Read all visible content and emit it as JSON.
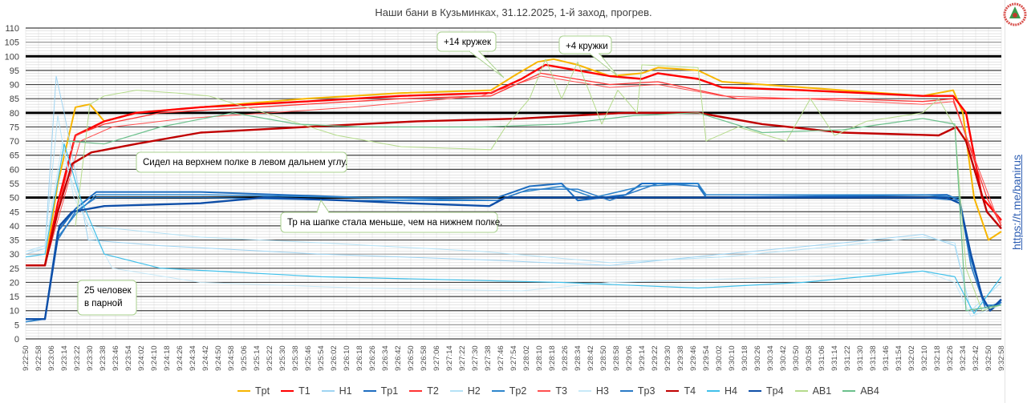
{
  "chart_data": {
    "type": "line",
    "title": "Наши бани в Кузьминках, 31.12.2025, 1-й заход, прогрев.",
    "xlabel": "",
    "ylabel": "",
    "ylim": [
      0,
      110
    ],
    "y_ticks": [
      "0",
      "5",
      "10",
      "15",
      "20",
      "25",
      "30",
      "35",
      "40",
      "45",
      "50",
      "55",
      "60",
      "65",
      "70",
      "75",
      "80",
      "85",
      "90",
      "95",
      "100",
      "105",
      "110"
    ],
    "x_start": "9:22:50",
    "x_end": "9:32:58",
    "x_tick_step_seconds": 8,
    "x_range_seconds": [
      0,
      608
    ],
    "bold_reference_lines": [
      50,
      80,
      100
    ],
    "grid": true,
    "legend_position": "bottom",
    "series": [
      {
        "name": "Tpt",
        "color": "#f7b500",
        "width": 2,
        "points": [
          [
            0,
            26
          ],
          [
            12,
            26
          ],
          [
            20,
            55
          ],
          [
            31,
            82
          ],
          [
            40,
            83
          ],
          [
            49,
            77
          ],
          [
            69,
            80
          ],
          [
            109,
            82
          ],
          [
            174,
            85
          ],
          [
            234,
            87
          ],
          [
            290,
            88
          ],
          [
            304,
            93
          ],
          [
            319,
            98
          ],
          [
            329,
            99
          ],
          [
            344,
            97
          ],
          [
            364,
            93
          ],
          [
            384,
            94
          ],
          [
            394,
            96
          ],
          [
            419,
            95
          ],
          [
            434,
            91
          ],
          [
            459,
            90
          ],
          [
            509,
            88
          ],
          [
            559,
            86
          ],
          [
            578,
            88
          ],
          [
            584,
            80
          ],
          [
            591,
            50
          ],
          [
            600,
            35
          ],
          [
            608,
            38
          ]
        ]
      },
      {
        "name": "T1",
        "color": "#ff0000",
        "width": 2.4,
        "points": [
          [
            0,
            26
          ],
          [
            12,
            26
          ],
          [
            20,
            48
          ],
          [
            31,
            72
          ],
          [
            49,
            77
          ],
          [
            69,
            80
          ],
          [
            109,
            82
          ],
          [
            174,
            84
          ],
          [
            234,
            86
          ],
          [
            290,
            87
          ],
          [
            309,
            92
          ],
          [
            324,
            97
          ],
          [
            334,
            96
          ],
          [
            364,
            93
          ],
          [
            384,
            92
          ],
          [
            394,
            94
          ],
          [
            419,
            92
          ],
          [
            434,
            89
          ],
          [
            484,
            88
          ],
          [
            559,
            86
          ],
          [
            578,
            86
          ],
          [
            586,
            80
          ],
          [
            596,
            50
          ],
          [
            608,
            42
          ]
        ]
      },
      {
        "name": "H1",
        "color": "#9fd4f2",
        "width": 1,
        "points": [
          [
            0,
            30
          ],
          [
            12,
            32
          ],
          [
            19,
            93
          ],
          [
            24,
            80
          ],
          [
            39,
            35
          ],
          [
            84,
            33
          ],
          [
            184,
            30
          ],
          [
            284,
            28
          ],
          [
            364,
            26
          ],
          [
            434,
            30
          ],
          [
            509,
            34
          ],
          [
            559,
            37
          ],
          [
            579,
            33
          ],
          [
            589,
            10
          ],
          [
            608,
            12
          ]
        ]
      },
      {
        "name": "Tp1",
        "color": "#1e6dc0",
        "width": 2,
        "points": [
          [
            0,
            7
          ],
          [
            12,
            7
          ],
          [
            20,
            38
          ],
          [
            31,
            46
          ],
          [
            44,
            52
          ],
          [
            109,
            52
          ],
          [
            159,
            51
          ],
          [
            209,
            50
          ],
          [
            294,
            50
          ],
          [
            314,
            54
          ],
          [
            334,
            55
          ],
          [
            344,
            49
          ],
          [
            374,
            51
          ],
          [
            384,
            55
          ],
          [
            419,
            55
          ],
          [
            424,
            50
          ],
          [
            574,
            51
          ],
          [
            582,
            49
          ],
          [
            589,
            30
          ],
          [
            596,
            15
          ],
          [
            601,
            10
          ],
          [
            608,
            13
          ]
        ]
      },
      {
        "name": "T2",
        "color": "#ff3333",
        "width": 1.3,
        "points": [
          [
            0,
            26
          ],
          [
            12,
            26
          ],
          [
            20,
            45
          ],
          [
            31,
            72
          ],
          [
            49,
            76
          ],
          [
            84,
            80
          ],
          [
            174,
            83
          ],
          [
            234,
            85
          ],
          [
            290,
            86
          ],
          [
            321,
            94
          ],
          [
            364,
            90
          ],
          [
            394,
            91
          ],
          [
            419,
            88
          ],
          [
            444,
            85
          ],
          [
            509,
            85
          ],
          [
            559,
            84
          ],
          [
            578,
            85
          ],
          [
            599,
            50
          ],
          [
            608,
            40
          ]
        ]
      },
      {
        "name": "H2",
        "color": "#b5e2f6",
        "width": 1,
        "points": [
          [
            0,
            31
          ],
          [
            12,
            33
          ],
          [
            20,
            79
          ],
          [
            26,
            60
          ],
          [
            39,
            40
          ],
          [
            109,
            36
          ],
          [
            184,
            34
          ],
          [
            284,
            31
          ],
          [
            364,
            27
          ],
          [
            434,
            29
          ],
          [
            509,
            33
          ],
          [
            559,
            36
          ],
          [
            579,
            34
          ],
          [
            589,
            10
          ],
          [
            608,
            20
          ]
        ]
      },
      {
        "name": "Tp2",
        "color": "#2e86cc",
        "width": 1.5,
        "points": [
          [
            0,
            6
          ],
          [
            12,
            7
          ],
          [
            20,
            36
          ],
          [
            31,
            44
          ],
          [
            44,
            51
          ],
          [
            109,
            51
          ],
          [
            209,
            50
          ],
          [
            294,
            49
          ],
          [
            309,
            52
          ],
          [
            334,
            54
          ],
          [
            354,
            50
          ],
          [
            384,
            54
          ],
          [
            419,
            55
          ],
          [
            424,
            51
          ],
          [
            559,
            51
          ],
          [
            582,
            50
          ],
          [
            589,
            28
          ],
          [
            598,
            12
          ],
          [
            608,
            12
          ]
        ]
      },
      {
        "name": "T3",
        "color": "#ff5050",
        "width": 1,
        "points": [
          [
            0,
            26
          ],
          [
            12,
            26
          ],
          [
            20,
            42
          ],
          [
            34,
            70
          ],
          [
            54,
            75
          ],
          [
            99,
            78
          ],
          [
            204,
            82
          ],
          [
            284,
            86
          ],
          [
            321,
            93
          ],
          [
            364,
            89
          ],
          [
            394,
            90
          ],
          [
            434,
            86
          ],
          [
            484,
            85
          ],
          [
            559,
            83
          ],
          [
            578,
            84
          ],
          [
            604,
            45
          ],
          [
            608,
            41
          ]
        ]
      },
      {
        "name": "H3",
        "color": "#c7e9f8",
        "width": 1,
        "points": [
          [
            0,
            31
          ],
          [
            12,
            32
          ],
          [
            23,
            70
          ],
          [
            30,
            50
          ],
          [
            54,
            25
          ],
          [
            109,
            20
          ],
          [
            209,
            18
          ],
          [
            309,
            17
          ],
          [
            364,
            20
          ],
          [
            484,
            22
          ],
          [
            559,
            24
          ],
          [
            579,
            20
          ],
          [
            589,
            8
          ],
          [
            608,
            12
          ]
        ]
      },
      {
        "name": "Tp3",
        "color": "#2b7bc6",
        "width": 1.5,
        "points": [
          [
            0,
            7
          ],
          [
            12,
            7
          ],
          [
            20,
            35
          ],
          [
            31,
            45
          ],
          [
            44,
            50
          ],
          [
            109,
            50
          ],
          [
            209,
            49
          ],
          [
            294,
            49
          ],
          [
            314,
            53
          ],
          [
            344,
            53
          ],
          [
            364,
            49
          ],
          [
            394,
            55
          ],
          [
            419,
            54
          ],
          [
            424,
            50
          ],
          [
            559,
            50
          ],
          [
            582,
            49
          ],
          [
            589,
            26
          ],
          [
            598,
            11
          ],
          [
            608,
            13
          ]
        ]
      },
      {
        "name": "T4",
        "color": "#c00000",
        "width": 2.4,
        "points": [
          [
            0,
            26
          ],
          [
            12,
            26
          ],
          [
            20,
            45
          ],
          [
            29,
            62
          ],
          [
            41,
            66
          ],
          [
            69,
            69
          ],
          [
            109,
            73
          ],
          [
            174,
            75
          ],
          [
            244,
            77
          ],
          [
            309,
            78
          ],
          [
            374,
            80
          ],
          [
            419,
            80
          ],
          [
            459,
            76
          ],
          [
            509,
            73
          ],
          [
            569,
            72
          ],
          [
            580,
            75
          ],
          [
            586,
            70
          ],
          [
            599,
            45
          ],
          [
            608,
            39
          ]
        ]
      },
      {
        "name": "H4",
        "color": "#40c0ea",
        "width": 1.2,
        "points": [
          [
            0,
            29
          ],
          [
            12,
            30
          ],
          [
            24,
            69
          ],
          [
            34,
            50
          ],
          [
            49,
            30
          ],
          [
            84,
            25
          ],
          [
            184,
            22
          ],
          [
            334,
            20
          ],
          [
            419,
            18
          ],
          [
            484,
            20
          ],
          [
            559,
            24
          ],
          [
            579,
            22
          ],
          [
            591,
            9
          ],
          [
            608,
            22
          ]
        ]
      },
      {
        "name": "Tp4",
        "color": "#0f4fa8",
        "width": 2.4,
        "points": [
          [
            0,
            7
          ],
          [
            12,
            7
          ],
          [
            21,
            40
          ],
          [
            29,
            45
          ],
          [
            49,
            47
          ],
          [
            109,
            48
          ],
          [
            149,
            50
          ],
          [
            199,
            49
          ],
          [
            239,
            48
          ],
          [
            289,
            47
          ],
          [
            299,
            50
          ],
          [
            484,
            50
          ],
          [
            574,
            50
          ],
          [
            582,
            48
          ],
          [
            589,
            30
          ],
          [
            596,
            15
          ],
          [
            601,
            10
          ],
          [
            608,
            14
          ]
        ]
      },
      {
        "name": "AB1",
        "color": "#b5db8c",
        "width": 1,
        "points": [
          [
            31,
            40
          ],
          [
            40,
            83
          ],
          [
            49,
            86
          ],
          [
            69,
            88
          ],
          [
            94,
            87
          ],
          [
            114,
            86
          ],
          [
            149,
            80
          ],
          [
            194,
            72
          ],
          [
            234,
            68
          ],
          [
            290,
            67
          ],
          [
            299,
            75
          ],
          [
            314,
            85
          ],
          [
            324,
            99
          ],
          [
            334,
            85
          ],
          [
            344,
            98
          ],
          [
            359,
            76
          ],
          [
            369,
            88
          ],
          [
            381,
            80
          ],
          [
            384,
            97
          ],
          [
            419,
            96
          ],
          [
            424,
            70
          ],
          [
            444,
            75
          ],
          [
            474,
            70
          ],
          [
            489,
            85
          ],
          [
            504,
            72
          ],
          [
            524,
            77
          ],
          [
            559,
            80
          ],
          [
            569,
            85
          ],
          [
            579,
            75
          ],
          [
            586,
            25
          ],
          [
            596,
            10
          ],
          [
            608,
            12
          ]
        ]
      },
      {
        "name": "AB4",
        "color": "#6cc08c",
        "width": 1.2,
        "points": [
          [
            26,
            70
          ],
          [
            49,
            69
          ],
          [
            84,
            75
          ],
          [
            129,
            80
          ],
          [
            169,
            76
          ],
          [
            209,
            75
          ],
          [
            284,
            75
          ],
          [
            334,
            76
          ],
          [
            379,
            79
          ],
          [
            419,
            80
          ],
          [
            459,
            73
          ],
          [
            509,
            74
          ],
          [
            559,
            78
          ],
          [
            579,
            76
          ],
          [
            586,
            10
          ],
          [
            608,
            12
          ]
        ]
      }
    ],
    "annotations": [
      {
        "lines": [
          "+14 кружек"
        ]
      },
      {
        "lines": [
          "+4 кружки"
        ]
      },
      {
        "lines": [
          "Сидел на верхнем полке в левом дальнем углу."
        ]
      },
      {
        "lines": [
          "Тр на шапке стала меньше, чем на нижнем полке."
        ]
      },
      {
        "lines": [
          "25 человек",
          "в парной"
        ]
      }
    ]
  },
  "side_link": "https://t.me/banirus",
  "logo_text": "Наши русские бани"
}
